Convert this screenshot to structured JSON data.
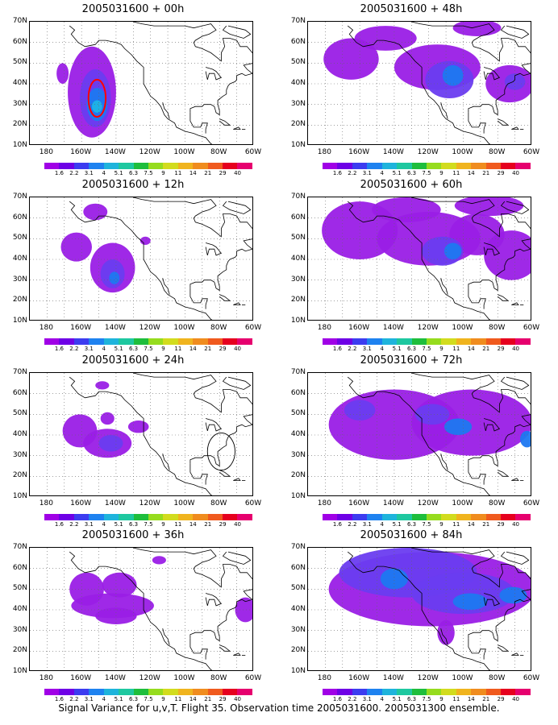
{
  "panels": [
    {
      "title": "2005031600 + 00h",
      "blobs": [
        {
          "lon": -154,
          "lat": 36,
          "rx": 14,
          "ry": 22,
          "lv": 0
        },
        {
          "lon": -152,
          "lat": 33,
          "rx": 9,
          "ry": 14,
          "lv": 1
        },
        {
          "lon": -151,
          "lat": 30,
          "rx": 6,
          "ry": 8,
          "lv": 2
        },
        {
          "lon": -151,
          "lat": 29,
          "rx": 3,
          "ry": 3,
          "lv": 3
        },
        {
          "lon": -171,
          "lat": 45,
          "rx": 3.5,
          "ry": 5,
          "lv": 0
        }
      ],
      "marks": [
        {
          "type": "ellipse",
          "lon": -151,
          "lat": 33,
          "rx": 5,
          "ry": 9,
          "color": "#ff0000"
        }
      ]
    },
    {
      "title": "2005031600 + 48h",
      "blobs": [
        {
          "lon": -165,
          "lat": 52,
          "rx": 16,
          "ry": 10,
          "lv": 0
        },
        {
          "lon": -145,
          "lat": 62,
          "rx": 18,
          "ry": 6,
          "lv": 0
        },
        {
          "lon": -115,
          "lat": 48,
          "rx": 25,
          "ry": 11,
          "lv": 0
        },
        {
          "lon": -108,
          "lat": 42,
          "rx": 14,
          "ry": 9,
          "lv": 1
        },
        {
          "lon": -106,
          "lat": 44,
          "rx": 6,
          "ry": 5,
          "lv": 2
        },
        {
          "lon": -73,
          "lat": 40,
          "rx": 14,
          "ry": 9,
          "lv": 0
        },
        {
          "lon": -70,
          "lat": 41,
          "rx": 6,
          "ry": 4,
          "lv": 1
        },
        {
          "lon": -92,
          "lat": 67,
          "rx": 14,
          "ry": 4,
          "lv": 0
        }
      ],
      "marks": []
    },
    {
      "title": "2005031600 + 12h",
      "blobs": [
        {
          "lon": -163,
          "lat": 46,
          "rx": 9,
          "ry": 7,
          "lv": 0
        },
        {
          "lon": -152,
          "lat": 63,
          "rx": 7,
          "ry": 4,
          "lv": 0
        },
        {
          "lon": -142,
          "lat": 36,
          "rx": 13,
          "ry": 12,
          "lv": 0
        },
        {
          "lon": -142,
          "lat": 33,
          "rx": 7,
          "ry": 7,
          "lv": 1
        },
        {
          "lon": -141,
          "lat": 31,
          "rx": 3,
          "ry": 3,
          "lv": 2
        },
        {
          "lon": -123,
          "lat": 49,
          "rx": 3,
          "ry": 2,
          "lv": 0
        }
      ],
      "marks": []
    },
    {
      "title": "2005031600 + 60h",
      "blobs": [
        {
          "lon": -160,
          "lat": 54,
          "rx": 22,
          "ry": 14,
          "lv": 0
        },
        {
          "lon": -120,
          "lat": 50,
          "rx": 30,
          "ry": 13,
          "lv": 0
        },
        {
          "lon": -92,
          "lat": 52,
          "rx": 16,
          "ry": 10,
          "lv": 0
        },
        {
          "lon": -72,
          "lat": 42,
          "rx": 16,
          "ry": 12,
          "lv": 0
        },
        {
          "lon": -112,
          "lat": 44,
          "rx": 12,
          "ry": 7,
          "lv": 1
        },
        {
          "lon": -106,
          "lat": 44,
          "rx": 5,
          "ry": 4,
          "lv": 2
        },
        {
          "lon": -85,
          "lat": 66,
          "rx": 20,
          "ry": 5,
          "lv": 0
        },
        {
          "lon": -133,
          "lat": 64,
          "rx": 20,
          "ry": 6,
          "lv": 0
        }
      ],
      "marks": []
    },
    {
      "title": "2005031600 + 24h",
      "blobs": [
        {
          "lon": -161,
          "lat": 42,
          "rx": 10,
          "ry": 8,
          "lv": 0
        },
        {
          "lon": -145,
          "lat": 36,
          "rx": 14,
          "ry": 7,
          "lv": 0
        },
        {
          "lon": -143,
          "lat": 36,
          "rx": 7,
          "ry": 4,
          "lv": 1
        },
        {
          "lon": -127,
          "lat": 44,
          "rx": 6,
          "ry": 3,
          "lv": 0
        },
        {
          "lon": -145,
          "lat": 48,
          "rx": 4,
          "ry": 3,
          "lv": 0
        },
        {
          "lon": -148,
          "lat": 64,
          "rx": 4,
          "ry": 2,
          "lv": 0
        }
      ],
      "marks": [
        {
          "type": "circle",
          "lon": -79,
          "lat": 32,
          "rx": 8,
          "ry": 9,
          "color": "#000000"
        }
      ]
    },
    {
      "title": "2005031600 + 72h",
      "blobs": [
        {
          "lon": -140,
          "lat": 45,
          "rx": 38,
          "ry": 17,
          "lv": 0
        },
        {
          "lon": -95,
          "lat": 46,
          "rx": 35,
          "ry": 16,
          "lv": 0
        },
        {
          "lon": -160,
          "lat": 52,
          "rx": 9,
          "ry": 5,
          "lv": 1
        },
        {
          "lon": -118,
          "lat": 50,
          "rx": 10,
          "ry": 5,
          "lv": 1
        },
        {
          "lon": -103,
          "lat": 44,
          "rx": 8,
          "ry": 4,
          "lv": 2
        },
        {
          "lon": -63,
          "lat": 38,
          "rx": 4,
          "ry": 4,
          "lv": 2
        }
      ],
      "marks": []
    },
    {
      "title": "2005031600 + 36h",
      "blobs": [
        {
          "lon": -157,
          "lat": 50,
          "rx": 10,
          "ry": 8,
          "lv": 0
        },
        {
          "lon": -142,
          "lat": 42,
          "rx": 24,
          "ry": 6,
          "lv": 0
        },
        {
          "lon": -138,
          "lat": 52,
          "rx": 10,
          "ry": 6,
          "lv": 0
        },
        {
          "lon": -140,
          "lat": 37,
          "rx": 12,
          "ry": 4,
          "lv": 0
        },
        {
          "lon": -115,
          "lat": 64,
          "rx": 4,
          "ry": 2,
          "lv": 0
        },
        {
          "lon": -65,
          "lat": 40,
          "rx": 6,
          "ry": 6,
          "lv": 0
        }
      ],
      "marks": []
    },
    {
      "title": "2005031600 + 84h",
      "blobs": [
        {
          "lon": -118,
          "lat": 50,
          "rx": 60,
          "ry": 18,
          "lv": 0
        },
        {
          "lon": -132,
          "lat": 58,
          "rx": 40,
          "ry": 12,
          "lv": 1
        },
        {
          "lon": -100,
          "lat": 48,
          "rx": 30,
          "ry": 10,
          "lv": 1
        },
        {
          "lon": -140,
          "lat": 55,
          "rx": 8,
          "ry": 5,
          "lv": 2
        },
        {
          "lon": -96,
          "lat": 44,
          "rx": 10,
          "ry": 4,
          "lv": 2
        },
        {
          "lon": -71,
          "lat": 47,
          "rx": 8,
          "ry": 4,
          "lv": 2
        },
        {
          "lon": -110,
          "lat": 29,
          "rx": 5,
          "ry": 6,
          "lv": 0
        }
      ],
      "marks": []
    }
  ],
  "axes": {
    "y_ticks": [
      "70N",
      "60N",
      "50N",
      "40N",
      "30N",
      "20N",
      "10N"
    ],
    "x_ticks": [
      "180",
      "160W",
      "140W",
      "120W",
      "100W",
      "80W",
      "60W"
    ]
  },
  "colorbar": {
    "colors": [
      "#a000e6",
      "#6e00e6",
      "#3c3cf0",
      "#1e82f0",
      "#1eb4dc",
      "#1ec8a0",
      "#1ebe3c",
      "#96dc1e",
      "#d2dc1e",
      "#f0b41e",
      "#f08c1e",
      "#f05a1e",
      "#e6001e",
      "#e6006e"
    ],
    "labels": [
      "1.6",
      "2.2",
      "3.1",
      "4",
      "5.1",
      "6.3",
      "7.5",
      "9",
      "11",
      "14",
      "21",
      "29",
      "40"
    ]
  },
  "caption": "Signal Variance for u,v,T. Flight 35. Observation time 2005031600. 2005031300 ensemble."
}
